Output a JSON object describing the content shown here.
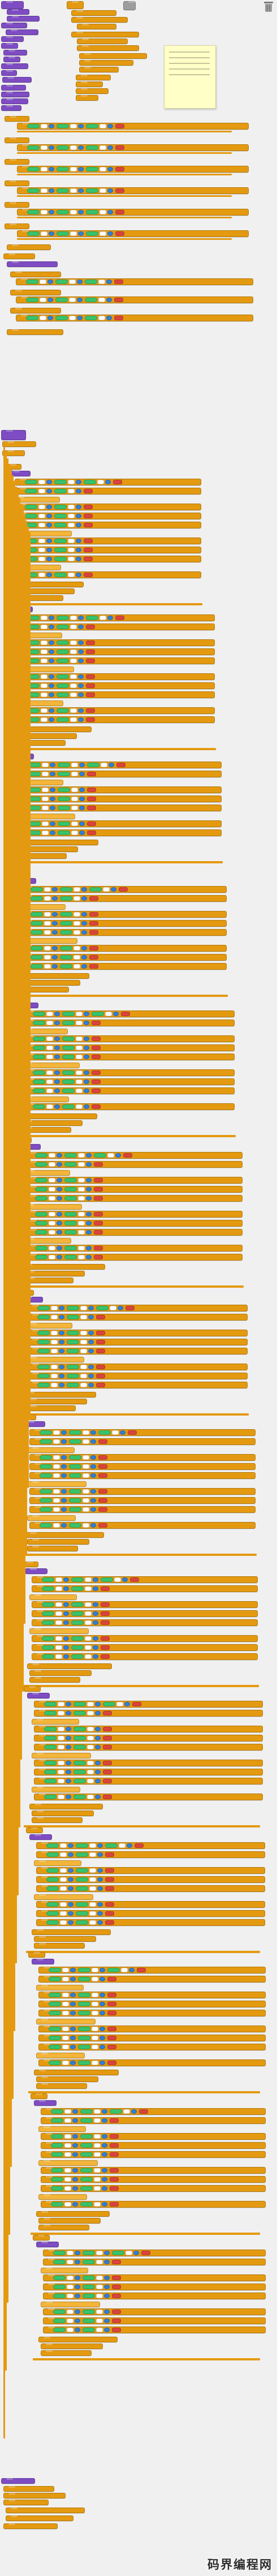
{
  "window": {
    "title": ""
  },
  "workspace": {
    "palette": {
      "purple": "#7e4cc3",
      "control_orange": "#e49a10",
      "control_light": "#f3b53a",
      "logic_green": "#39c26b",
      "logic_green_light": "#6fe39a",
      "value_blue": "#2f7fd8",
      "text_red": "#d9443a",
      "slot_white": "#ffffff",
      "rail_orange": "#e49a10"
    },
    "icons": {
      "trash": "trash-icon",
      "comment": "comment-icon"
    }
  },
  "watermark": {
    "text": "码界编程网"
  }
}
